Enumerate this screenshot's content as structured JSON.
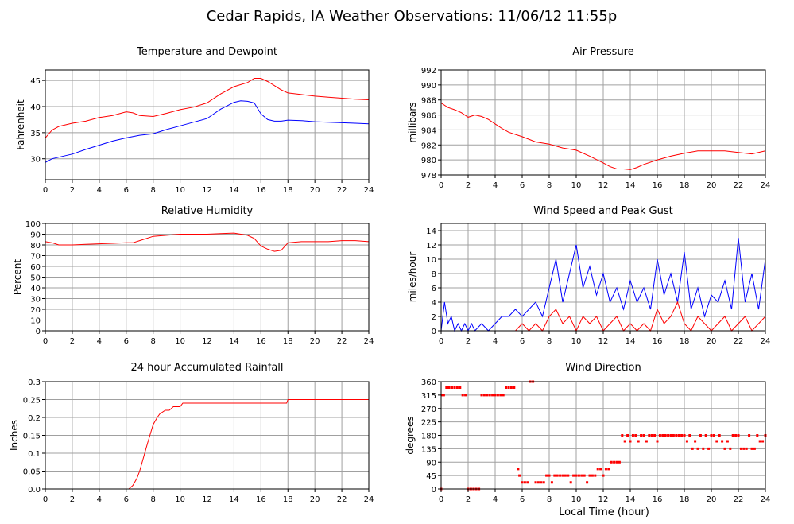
{
  "title": "Cedar Rapids, IA Weather Observations: 11/06/12 11:55p",
  "xlabel": "Local Time (hour)",
  "colors": {
    "red": "#ff0000",
    "blue": "#0000ff",
    "grid": "#a0a0a0"
  },
  "chart_data": [
    {
      "id": "temp",
      "type": "line",
      "title": "Temperature and Dewpoint",
      "ylabel": "Fahrenheit",
      "xlim": [
        0,
        24
      ],
      "ylim": [
        26,
        47
      ],
      "xticks": [
        0,
        2,
        4,
        6,
        8,
        10,
        12,
        14,
        16,
        18,
        20,
        22,
        24
      ],
      "yticks": [
        30,
        35,
        40,
        45
      ],
      "series": [
        {
          "color": "#ff0000",
          "x": [
            0,
            0.5,
            1,
            2,
            3,
            4,
            5,
            6,
            6.5,
            7,
            8,
            9,
            10,
            11,
            12,
            13,
            14,
            15,
            15.5,
            16,
            16.5,
            17,
            17.5,
            18,
            19,
            20,
            21,
            22,
            23,
            24
          ],
          "y": [
            34,
            35.5,
            36.2,
            36.8,
            37.2,
            37.9,
            38.3,
            39,
            38.8,
            38.3,
            38.1,
            38.7,
            39.4,
            39.9,
            40.7,
            42.4,
            43.8,
            44.6,
            45.4,
            45.4,
            44.8,
            44,
            43.2,
            42.6,
            42.3,
            42,
            41.8,
            41.6,
            41.4,
            41.3
          ]
        },
        {
          "color": "#0000ff",
          "x": [
            0,
            0.5,
            1,
            2,
            3,
            4,
            5,
            6,
            7,
            8,
            9,
            10,
            11,
            12,
            13,
            14,
            14.5,
            15,
            15.5,
            16,
            16.5,
            17,
            17.5,
            18,
            19,
            20,
            21,
            22,
            23,
            24
          ],
          "y": [
            29.3,
            30,
            30.3,
            30.9,
            31.8,
            32.6,
            33.4,
            34,
            34.5,
            34.8,
            35.6,
            36.3,
            37,
            37.7,
            39.5,
            40.8,
            41.1,
            41,
            40.7,
            38.6,
            37.5,
            37.2,
            37.2,
            37.4,
            37.3,
            37.1,
            37,
            36.9,
            36.8,
            36.7
          ]
        }
      ]
    },
    {
      "id": "pressure",
      "type": "line",
      "title": "Air Pressure",
      "ylabel": "millibars",
      "xlim": [
        0,
        24
      ],
      "ylim": [
        978,
        992
      ],
      "xticks": [
        0,
        2,
        4,
        6,
        8,
        10,
        12,
        14,
        16,
        18,
        20,
        22,
        24
      ],
      "yticks": [
        978,
        980,
        982,
        984,
        986,
        988,
        990,
        992
      ],
      "series": [
        {
          "color": "#ff0000",
          "x": [
            0,
            0.5,
            1,
            1.5,
            2,
            2.5,
            3,
            3.5,
            4,
            4.5,
            5,
            6,
            7,
            8,
            9,
            10,
            11,
            12,
            12.5,
            13,
            13.5,
            14,
            14.5,
            15,
            16,
            17,
            18,
            19,
            20,
            21,
            22,
            23,
            24
          ],
          "y": [
            987.6,
            987,
            986.7,
            986.3,
            985.7,
            986,
            985.8,
            985.4,
            984.8,
            984.2,
            983.7,
            983.1,
            982.4,
            982.1,
            981.6,
            981.3,
            980.5,
            979.6,
            979.1,
            978.8,
            978.8,
            978.7,
            979,
            979.4,
            980,
            980.5,
            980.9,
            981.2,
            981.2,
            981.2,
            981,
            980.8,
            981.2
          ]
        }
      ]
    },
    {
      "id": "humidity",
      "type": "line",
      "title": "Relative Humidity",
      "ylabel": "Percent",
      "xlim": [
        0,
        24
      ],
      "ylim": [
        0,
        100
      ],
      "xticks": [
        0,
        2,
        4,
        6,
        8,
        10,
        12,
        14,
        16,
        18,
        20,
        22,
        24
      ],
      "yticks": [
        0,
        10,
        20,
        30,
        40,
        50,
        60,
        70,
        80,
        90,
        100
      ],
      "series": [
        {
          "color": "#ff0000",
          "x": [
            0,
            0.5,
            1,
            2,
            3,
            4,
            5,
            6,
            6.5,
            7,
            8,
            9,
            10,
            11,
            12,
            13,
            14,
            15,
            15.5,
            16,
            16.5,
            17,
            17.5,
            18,
            19,
            20,
            21,
            22,
            23,
            24
          ],
          "y": [
            83,
            82,
            80,
            80,
            80.5,
            81,
            81.5,
            82,
            82,
            84,
            88,
            89,
            90,
            90,
            90,
            90.5,
            91,
            89,
            86,
            79,
            76,
            74,
            75,
            82,
            83,
            83,
            83,
            84,
            84,
            83
          ]
        }
      ]
    },
    {
      "id": "wind",
      "type": "line",
      "title": "Wind Speed and Peak Gust",
      "ylabel": "miles/hour",
      "xlim": [
        0,
        24
      ],
      "ylim": [
        0,
        15
      ],
      "xticks": [
        0,
        2,
        4,
        6,
        8,
        10,
        12,
        14,
        16,
        18,
        20,
        22,
        24
      ],
      "yticks": [
        0,
        2,
        4,
        6,
        8,
        10,
        12,
        14
      ],
      "series": [
        {
          "color": "#0000ff",
          "x": [
            0,
            0.25,
            0.5,
            0.75,
            1,
            1.25,
            1.5,
            1.75,
            2,
            2.25,
            2.5,
            3,
            3.5,
            4,
            4.5,
            5,
            5.5,
            6,
            6.5,
            7,
            7.5,
            8,
            8.5,
            9,
            9.5,
            10,
            10.5,
            11,
            11.5,
            12,
            12.5,
            13,
            13.5,
            14,
            14.5,
            15,
            15.5,
            16,
            16.5,
            17,
            17.5,
            18,
            18.5,
            19,
            19.5,
            20,
            20.5,
            21,
            21.5,
            22,
            22.5,
            23,
            23.5,
            24
          ],
          "y": [
            0,
            4,
            1,
            2,
            0,
            1,
            0,
            1,
            0,
            1,
            0,
            1,
            0,
            1,
            2,
            2,
            3,
            2,
            3,
            4,
            2,
            6,
            10,
            4,
            8,
            12,
            6,
            9,
            5,
            8,
            4,
            6,
            3,
            7,
            4,
            6,
            3,
            10,
            5,
            8,
            4,
            11,
            3,
            6,
            2,
            5,
            4,
            7,
            3,
            13,
            4,
            8,
            3,
            10
          ]
        },
        {
          "color": "#ff0000",
          "x": [
            0,
            0.5,
            1,
            1.5,
            2,
            2.5,
            3,
            3.5,
            4,
            4.5,
            5,
            5.5,
            6,
            6.5,
            7,
            7.5,
            8,
            8.5,
            9,
            9.5,
            10,
            10.5,
            11,
            11.5,
            12,
            12.5,
            13,
            13.5,
            14,
            14.5,
            15,
            15.5,
            16,
            16.5,
            17,
            17.5,
            18,
            18.5,
            19,
            19.5,
            20,
            20.5,
            21,
            21.5,
            22,
            22.5,
            23,
            23.5,
            24
          ],
          "y": [
            0,
            0,
            0,
            0,
            0,
            0,
            0,
            0,
            0,
            0,
            0,
            0,
            1,
            0,
            1,
            0,
            2,
            3,
            1,
            2,
            0,
            2,
            1,
            2,
            0,
            1,
            2,
            0,
            1,
            0,
            1,
            0,
            3,
            1,
            2,
            4,
            1,
            0,
            2,
            1,
            0,
            1,
            2,
            0,
            1,
            2,
            0,
            1,
            2
          ]
        }
      ]
    },
    {
      "id": "rain",
      "type": "line",
      "title": "24 hour Accumulated Rainfall",
      "ylabel": "Inches",
      "xlim": [
        0,
        24
      ],
      "ylim": [
        0,
        0.3
      ],
      "xticks": [
        0,
        2,
        4,
        6,
        8,
        10,
        12,
        14,
        16,
        18,
        20,
        22,
        24
      ],
      "yticks": [
        0,
        0.05,
        0.1,
        0.15,
        0.2,
        0.25,
        0.3
      ],
      "ytickLabels": [
        "0.0",
        "0.05",
        "0.1",
        "0.15",
        "0.2",
        "0.25",
        "0.3"
      ],
      "series": [
        {
          "color": "#ff0000",
          "x": [
            0,
            6.2,
            6.5,
            6.8,
            7,
            7.3,
            7.6,
            8,
            8.3,
            8.5,
            8.9,
            9.2,
            9.5,
            10,
            10.2,
            17.9,
            18,
            24
          ],
          "y": [
            0,
            0,
            0.01,
            0.03,
            0.05,
            0.09,
            0.13,
            0.18,
            0.2,
            0.21,
            0.22,
            0.22,
            0.23,
            0.23,
            0.24,
            0.24,
            0.25,
            0.25
          ]
        }
      ]
    },
    {
      "id": "direction",
      "type": "scatter",
      "title": "Wind Direction",
      "ylabel": "degrees",
      "xlim": [
        0,
        24
      ],
      "ylim": [
        0,
        360
      ],
      "xticks": [
        0,
        2,
        4,
        6,
        8,
        10,
        12,
        14,
        16,
        18,
        20,
        22,
        24
      ],
      "yticks": [
        0,
        45,
        90,
        135,
        180,
        225,
        270,
        315,
        360
      ],
      "series": [
        {
          "color": "#ff0000",
          "x": [
            0,
            0.1,
            0.2,
            0.4,
            0.5,
            0.6,
            0.8,
            1,
            1.2,
            1.4,
            1.6,
            1.8,
            2,
            2.2,
            2.4,
            2.6,
            2.8,
            3,
            3.2,
            3.4,
            3.6,
            3.8,
            4,
            4.2,
            4.4,
            4.6,
            4.8,
            5,
            5.2,
            5.4,
            5.7,
            5.8,
            6,
            6.2,
            6.4,
            6.6,
            6.8,
            7,
            7.2,
            7.4,
            7.6,
            7.8,
            8,
            8.2,
            8.4,
            8.6,
            8.8,
            9,
            9.2,
            9.4,
            9.6,
            9.8,
            10,
            10.2,
            10.4,
            10.6,
            10.8,
            11,
            11.2,
            11.4,
            11.6,
            11.8,
            12,
            12.2,
            12.4,
            12.6,
            12.8,
            13,
            13.2,
            13.4,
            13.6,
            13.8,
            14,
            14.2,
            14.4,
            14.6,
            14.8,
            15,
            15.2,
            15.4,
            15.6,
            15.8,
            16,
            16.2,
            16.4,
            16.6,
            16.8,
            17,
            17.2,
            17.4,
            17.6,
            17.8,
            18,
            18.2,
            18.4,
            18.6,
            18.8,
            19,
            19.2,
            19.4,
            19.6,
            19.8,
            20,
            20.2,
            20.4,
            20.6,
            20.8,
            21,
            21.2,
            21.4,
            21.6,
            21.8,
            22,
            22.2,
            22.4,
            22.6,
            22.8,
            23,
            23.2,
            23.4,
            23.6,
            23.8,
            24
          ],
          "y": [
            0,
            315,
            315,
            340,
            340,
            340,
            340,
            340,
            340,
            340,
            315,
            315,
            0,
            0,
            0,
            0,
            0,
            315,
            315,
            315,
            315,
            315,
            315,
            315,
            315,
            315,
            340,
            340,
            340,
            340,
            67,
            45,
            22,
            22,
            22,
            360,
            360,
            22,
            22,
            22,
            22,
            45,
            45,
            22,
            45,
            45,
            45,
            45,
            45,
            45,
            22,
            45,
            45,
            45,
            45,
            45,
            22,
            45,
            45,
            45,
            67,
            67,
            45,
            67,
            67,
            90,
            90,
            90,
            90,
            180,
            160,
            180,
            160,
            180,
            180,
            160,
            180,
            180,
            160,
            180,
            180,
            180,
            160,
            180,
            180,
            180,
            180,
            180,
            180,
            180,
            180,
            180,
            180,
            160,
            180,
            135,
            160,
            135,
            180,
            135,
            180,
            135,
            180,
            180,
            160,
            180,
            160,
            135,
            160,
            135,
            180,
            180,
            180,
            135,
            135,
            135,
            180,
            135,
            135,
            180,
            160,
            160,
            180
          ]
        }
      ]
    }
  ]
}
